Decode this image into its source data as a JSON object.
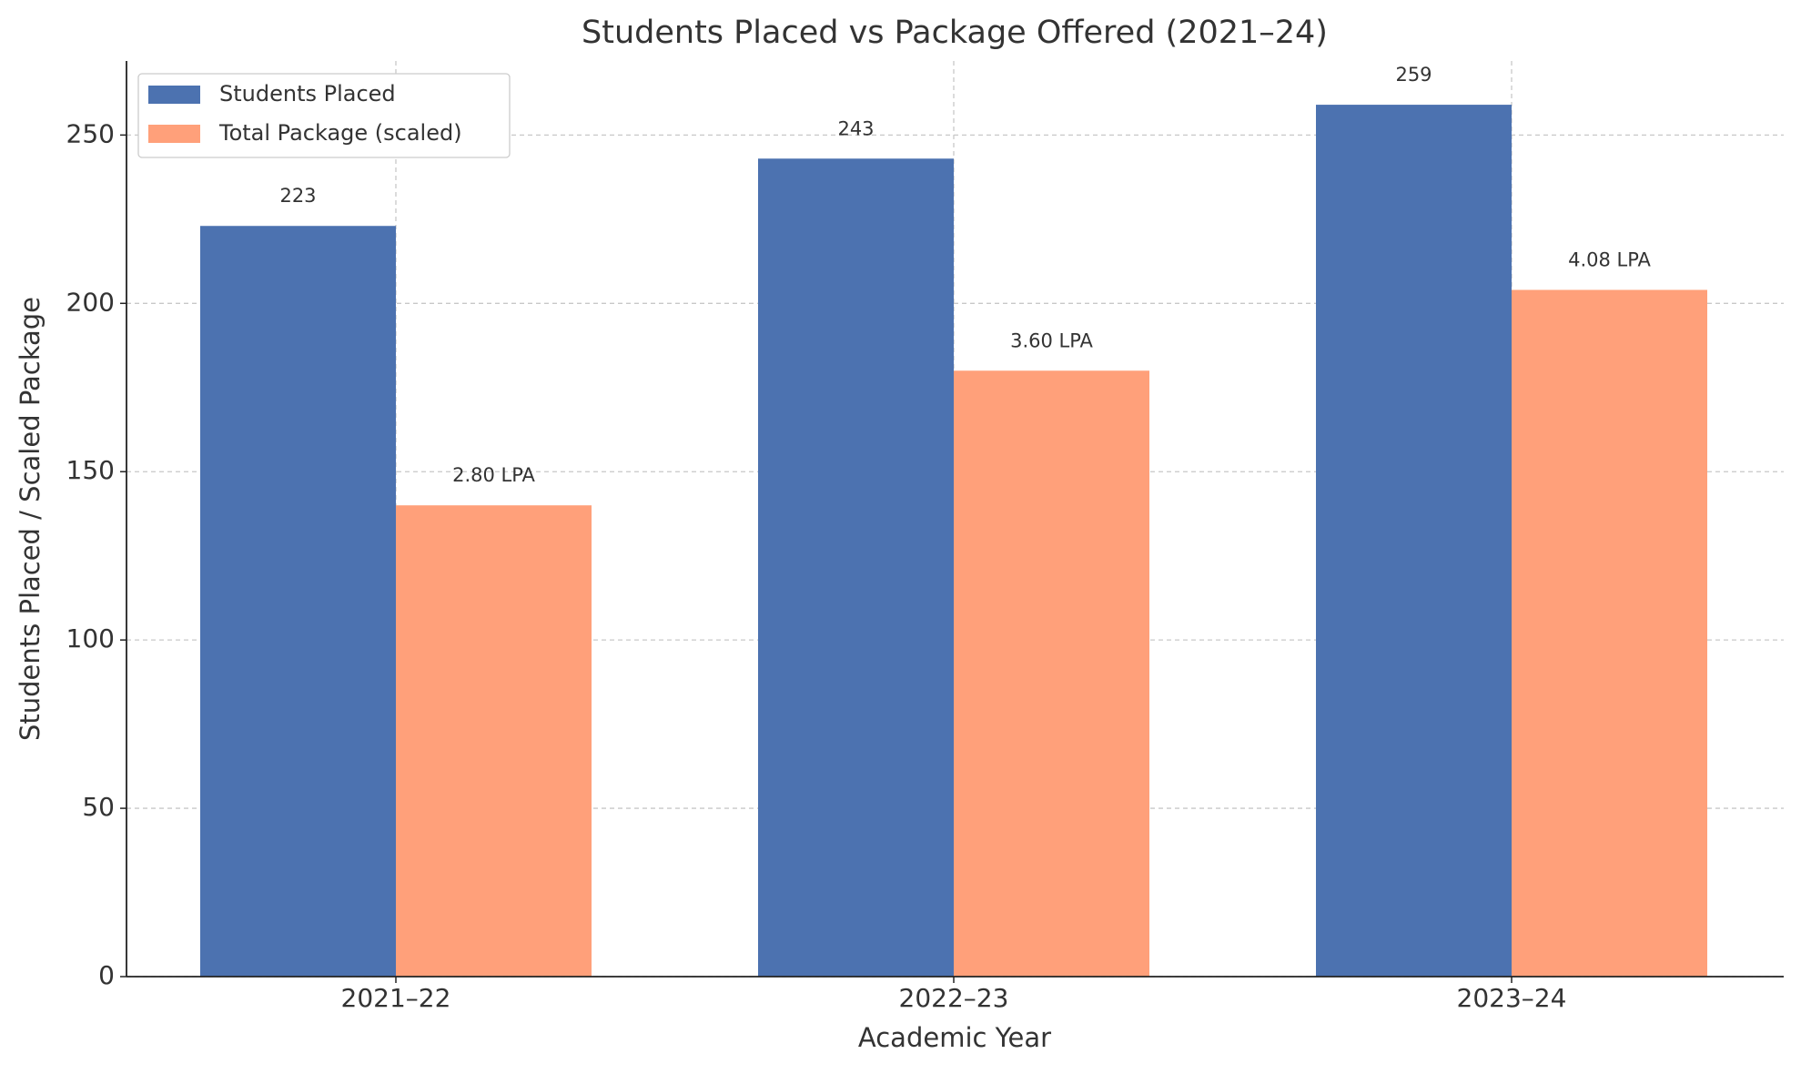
{
  "chart_data": {
    "type": "bar",
    "title": "Students Placed vs Package Offered (2021–24)",
    "x_label": "Academic Year",
    "y_label": "Students Placed / Scaled Package",
    "categories": [
      "2021–22",
      "2022–23",
      "2023–24"
    ],
    "series": [
      {
        "name": "Students Placed",
        "color": "#4c72b0",
        "values": [
          223,
          243,
          259
        ]
      },
      {
        "name": "Total Package (scaled)",
        "color": "#ffa07a",
        "values": [
          140,
          180,
          204
        ],
        "value_labels": [
          "2.80 LPA",
          "3.60 LPA",
          "4.08 LPA"
        ]
      }
    ],
    "ylim": [
      0,
      272
    ],
    "yticks": [
      0,
      50,
      100,
      150,
      200,
      250
    ],
    "grid": true,
    "legend": "upper left"
  }
}
